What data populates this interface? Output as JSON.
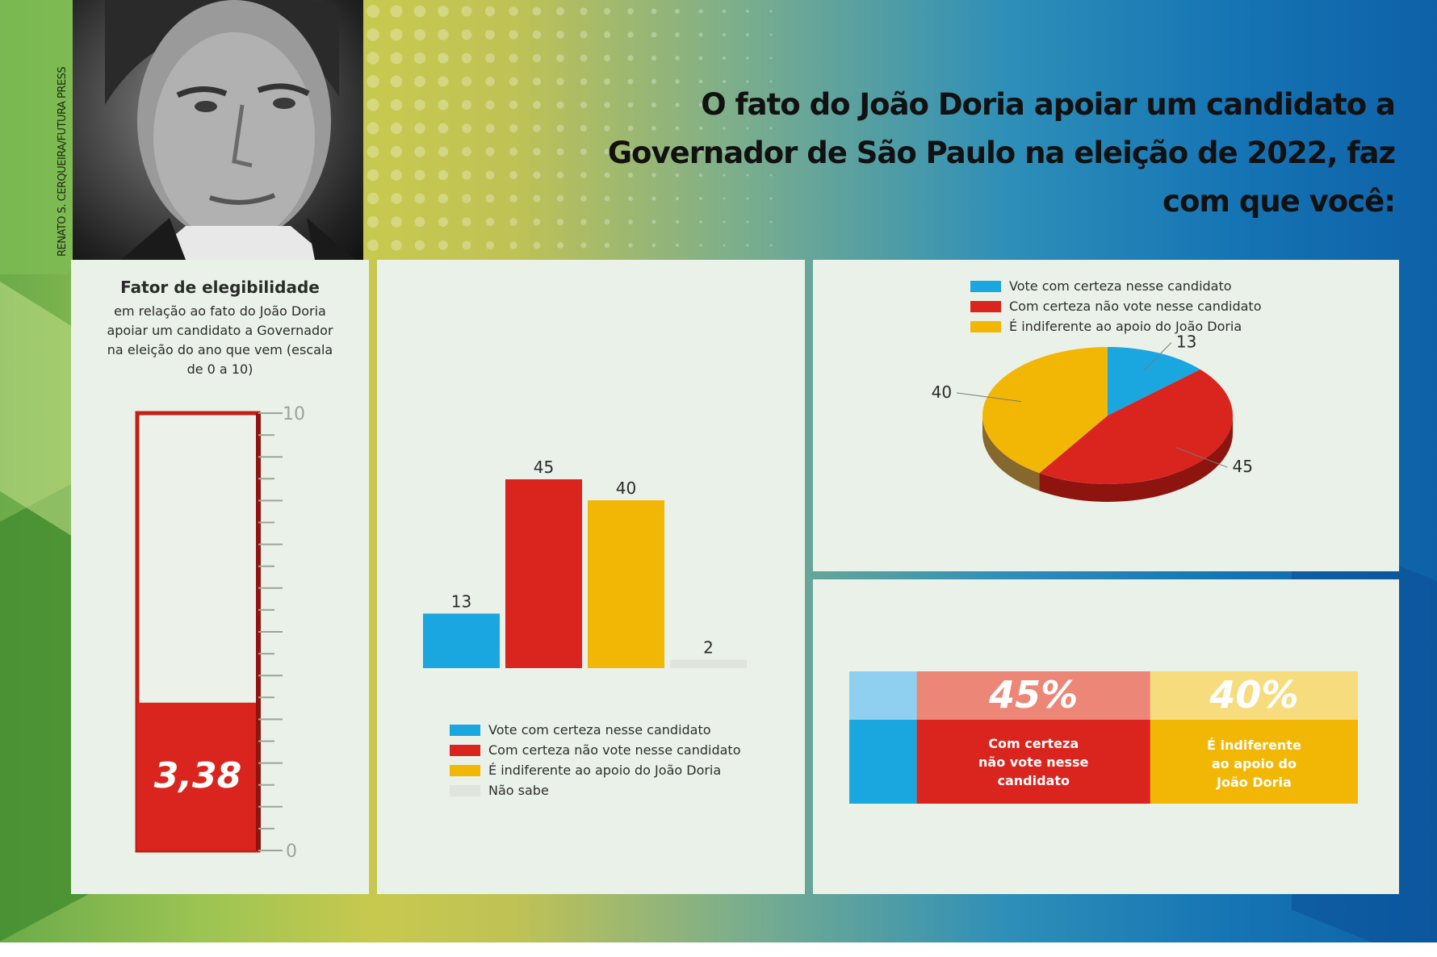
{
  "title": "O fato do João Doria apoiar um candidato a Governador de São Paulo na eleição de 2022, faz com que você:",
  "photo_credit": "RENATO S. CERQUEIRA/FUTURA PRESS",
  "colors": {
    "blue": "#1aa6de",
    "red": "#d9251d",
    "yellow": "#f2b705",
    "gray": "#dfe4dc",
    "dark_red": "#8e1410",
    "pale_blue": "#8fd0f0",
    "pale_red": "#ec8676",
    "pale_yellow": "#f7dc7e"
  },
  "meter": {
    "heading": "Fator de elegibilidade",
    "subtitle": "em relação ao fato do João Doria apoiar um candidato a Governador na eleição do ano que vem (escala de 0 a 10)",
    "value": 3.38,
    "value_label": "3,38",
    "scale_max_label": "10",
    "scale_min_label": "0"
  },
  "legend_bars": [
    {
      "label": "Vote com certeza nesse candidato",
      "color": "#1aa6de"
    },
    {
      "label": "Com certeza não vote nesse candidato",
      "color": "#d9251d"
    },
    {
      "label": "É indiferente ao apoio do João Doria",
      "color": "#f2b705"
    },
    {
      "label": "Não sabe",
      "color": "#dfe4dc"
    }
  ],
  "legend_pie": [
    {
      "label": "Vote com certeza nesse candidato",
      "color": "#1aa6de"
    },
    {
      "label": "Com certeza não vote nesse candidato",
      "color": "#d9251d"
    },
    {
      "label": "É indiferente ao apoio do João Doria",
      "color": "#f2b705"
    }
  ],
  "stack": {
    "pct_red": "45%",
    "pct_yellow": "40%",
    "label_red": "Com certeza\nnão vote nesse\ncandidato",
    "label_yellow": "É indiferente\nao apoio do\nJoão Doria"
  },
  "chart_data": [
    {
      "type": "bar",
      "orientation": "vertical-gauge",
      "title": "Fator de elegibilidade",
      "values": [
        3.38
      ],
      "ylim": [
        0,
        10
      ],
      "tick_labels": [
        "0",
        "10"
      ]
    },
    {
      "type": "bar",
      "categories": [
        "Vote com certeza nesse candidato",
        "Com certeza não vote nesse candidato",
        "É indiferente ao apoio do João Doria",
        "Não sabe"
      ],
      "values": [
        13,
        45,
        40,
        2
      ],
      "data_labels": [
        "13",
        "45",
        "40",
        "2"
      ],
      "ylim": [
        0,
        45
      ],
      "legend": "bottom"
    },
    {
      "type": "pie",
      "categories": [
        "Vote com certeza nesse candidato",
        "Com certeza não vote nesse candidato",
        "É indiferente ao apoio do João Doria"
      ],
      "values": [
        13,
        45,
        40
      ],
      "data_labels": [
        "13",
        "45",
        "40"
      ],
      "legend": "top"
    },
    {
      "type": "bar",
      "orientation": "horizontal-stacked",
      "categories": [
        "Vote com certeza nesse candidato",
        "Com certeza não vote nesse candidato",
        "É indiferente ao apoio do João Doria"
      ],
      "values": [
        13,
        45,
        40
      ],
      "data_labels": [
        "",
        "45%",
        "40%"
      ]
    }
  ]
}
